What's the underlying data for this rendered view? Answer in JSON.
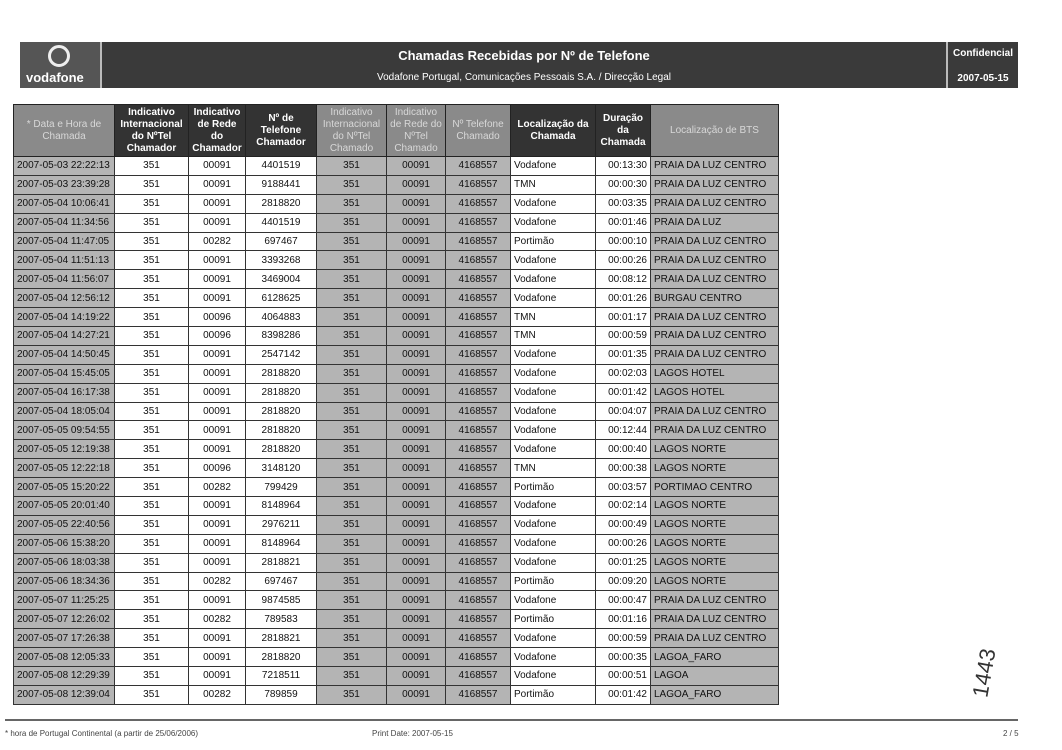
{
  "header": {
    "logo": "vodafone",
    "title": "Chamadas Recebidas por Nº de Telefone",
    "subtitle": "Vodafone Portugal, Comunicações Pessoais S.A.  /  Direcção Legal",
    "confidential": "Confidencial",
    "date": "2007-05-15"
  },
  "table": {
    "columns": [
      "* Data e Hora de Chamada",
      "Indicativo Internacional do NºTel Chamador",
      "Indicativo de Rede do Chamador",
      "Nº de Telefone Chamador",
      "Indicativo Internacional do NºTel Chamado",
      "Indicativo de Rede do NºTel Chamado",
      "Nº Telefone Chamado",
      "Localização da Chamada",
      "Duração da Chamada",
      "Localização de BTS"
    ],
    "rows": [
      [
        "2007-05-03  22:22:13",
        "351",
        "00091",
        "4401519",
        "351",
        "00091",
        "4168557",
        "Vodafone",
        "00:13:30",
        "PRAIA DA LUZ CENTRO"
      ],
      [
        "2007-05-03  23:39:28",
        "351",
        "00091",
        "9188441",
        "351",
        "00091",
        "4168557",
        "TMN",
        "00:00:30",
        "PRAIA DA LUZ CENTRO"
      ],
      [
        "2007-05-04  10:06:41",
        "351",
        "00091",
        "2818820",
        "351",
        "00091",
        "4168557",
        "Vodafone",
        "00:03:35",
        "PRAIA DA LUZ CENTRO"
      ],
      [
        "2007-05-04  11:34:56",
        "351",
        "00091",
        "4401519",
        "351",
        "00091",
        "4168557",
        "Vodafone",
        "00:01:46",
        "PRAIA DA LUZ"
      ],
      [
        "2007-05-04  11:47:05",
        "351",
        "00282",
        "697467",
        "351",
        "00091",
        "4168557",
        "Portimão",
        "00:00:10",
        "PRAIA DA LUZ CENTRO"
      ],
      [
        "2007-05-04  11:51:13",
        "351",
        "00091",
        "3393268",
        "351",
        "00091",
        "4168557",
        "Vodafone",
        "00:00:26",
        "PRAIA DA LUZ CENTRO"
      ],
      [
        "2007-05-04  11:56:07",
        "351",
        "00091",
        "3469004",
        "351",
        "00091",
        "4168557",
        "Vodafone",
        "00:08:12",
        "PRAIA DA LUZ CENTRO"
      ],
      [
        "2007-05-04  12:56:12",
        "351",
        "00091",
        "6128625",
        "351",
        "00091",
        "4168557",
        "Vodafone",
        "00:01:26",
        "BURGAU CENTRO"
      ],
      [
        "2007-05-04  14:19:22",
        "351",
        "00096",
        "4064883",
        "351",
        "00091",
        "4168557",
        "TMN",
        "00:01:17",
        "PRAIA DA LUZ CENTRO"
      ],
      [
        "2007-05-04  14:27:21",
        "351",
        "00096",
        "8398286",
        "351",
        "00091",
        "4168557",
        "TMN",
        "00:00:59",
        "PRAIA DA LUZ CENTRO"
      ],
      [
        "2007-05-04  14:50:45",
        "351",
        "00091",
        "2547142",
        "351",
        "00091",
        "4168557",
        "Vodafone",
        "00:01:35",
        "PRAIA DA LUZ CENTRO"
      ],
      [
        "2007-05-04  15:45:05",
        "351",
        "00091",
        "2818820",
        "351",
        "00091",
        "4168557",
        "Vodafone",
        "00:02:03",
        "LAGOS HOTEL"
      ],
      [
        "2007-05-04  16:17:38",
        "351",
        "00091",
        "2818820",
        "351",
        "00091",
        "4168557",
        "Vodafone",
        "00:01:42",
        "LAGOS HOTEL"
      ],
      [
        "2007-05-04  18:05:04",
        "351",
        "00091",
        "2818820",
        "351",
        "00091",
        "4168557",
        "Vodafone",
        "00:04:07",
        "PRAIA DA LUZ CENTRO"
      ],
      [
        "2007-05-05  09:54:55",
        "351",
        "00091",
        "2818820",
        "351",
        "00091",
        "4168557",
        "Vodafone",
        "00:12:44",
        "PRAIA DA LUZ CENTRO"
      ],
      [
        "2007-05-05  12:19:38",
        "351",
        "00091",
        "2818820",
        "351",
        "00091",
        "4168557",
        "Vodafone",
        "00:00:40",
        "LAGOS NORTE"
      ],
      [
        "2007-05-05  12:22:18",
        "351",
        "00096",
        "3148120",
        "351",
        "00091",
        "4168557",
        "TMN",
        "00:00:38",
        "LAGOS NORTE"
      ],
      [
        "2007-05-05  15:20:22",
        "351",
        "00282",
        "799429",
        "351",
        "00091",
        "4168557",
        "Portimão",
        "00:03:57",
        "PORTIMAO CENTRO"
      ],
      [
        "2007-05-05  20:01:40",
        "351",
        "00091",
        "8148964",
        "351",
        "00091",
        "4168557",
        "Vodafone",
        "00:02:14",
        "LAGOS NORTE"
      ],
      [
        "2007-05-05  22:40:56",
        "351",
        "00091",
        "2976211",
        "351",
        "00091",
        "4168557",
        "Vodafone",
        "00:00:49",
        "LAGOS NORTE"
      ],
      [
        "2007-05-06  15:38:20",
        "351",
        "00091",
        "8148964",
        "351",
        "00091",
        "4168557",
        "Vodafone",
        "00:00:26",
        "LAGOS NORTE"
      ],
      [
        "2007-05-06  18:03:38",
        "351",
        "00091",
        "2818821",
        "351",
        "00091",
        "4168557",
        "Vodafone",
        "00:01:25",
        "LAGOS NORTE"
      ],
      [
        "2007-05-06  18:34:36",
        "351",
        "00282",
        "697467",
        "351",
        "00091",
        "4168557",
        "Portimão",
        "00:09:20",
        "LAGOS NORTE"
      ],
      [
        "2007-05-07  11:25:25",
        "351",
        "00091",
        "9874585",
        "351",
        "00091",
        "4168557",
        "Vodafone",
        "00:00:47",
        "PRAIA DA LUZ CENTRO"
      ],
      [
        "2007-05-07  12:26:02",
        "351",
        "00282",
        "789583",
        "351",
        "00091",
        "4168557",
        "Portimão",
        "00:01:16",
        "PRAIA DA LUZ CENTRO"
      ],
      [
        "2007-05-07  17:26:38",
        "351",
        "00091",
        "2818821",
        "351",
        "00091",
        "4168557",
        "Vodafone",
        "00:00:59",
        "PRAIA DA LUZ CENTRO"
      ],
      [
        "2007-05-08  12:05:33",
        "351",
        "00091",
        "2818820",
        "351",
        "00091",
        "4168557",
        "Vodafone",
        "00:00:35",
        "LAGOA_FARO"
      ],
      [
        "2007-05-08  12:29:39",
        "351",
        "00091",
        "7218511",
        "351",
        "00091",
        "4168557",
        "Vodafone",
        "00:00:51",
        "LAGOA"
      ],
      [
        "2007-05-08  12:39:04",
        "351",
        "00282",
        "789859",
        "351",
        "00091",
        "4168557",
        "Portimão",
        "00:01:42",
        "LAGOA_FARO"
      ]
    ]
  },
  "footer": {
    "note": "* hora de Portugal Continental (a partir de 25/06/2006)",
    "print_date": "Print Date:  2007-05-15",
    "page": "2 / 5"
  },
  "handwriting": "1443"
}
